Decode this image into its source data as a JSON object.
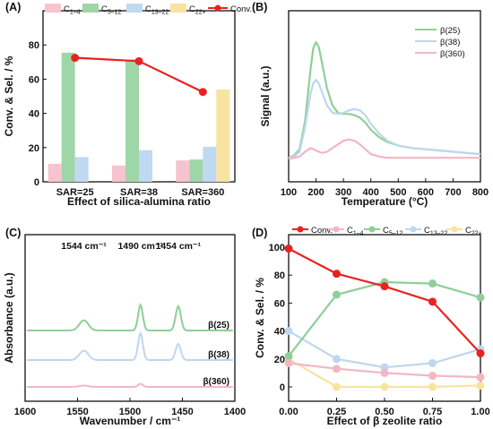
{
  "chart_data": [
    {
      "panel": "(A)",
      "type": "bar",
      "categories": [
        "SAR=25",
        "SAR=38",
        "SAR=360"
      ],
      "series": [
        {
          "name": "C1–4",
          "sub": "1–4",
          "color": "#f7c3cf",
          "values": [
            10.5,
            9.5,
            12.5
          ]
        },
        {
          "name": "C5–12",
          "sub": "5–12",
          "color": "#9fd6a7",
          "values": [
            75.5,
            71.5,
            13
          ]
        },
        {
          "name": "C13–22",
          "sub": "13–22",
          "color": "#bfd9f2",
          "values": [
            14.5,
            18.5,
            20.5
          ]
        },
        {
          "name": "C22+",
          "sub": "22+",
          "color": "#f8e3a0",
          "values": [
            0,
            0,
            54
          ]
        }
      ],
      "line": {
        "name": "Conv.",
        "color": "#e8231f",
        "values": [
          72.5,
          70.5,
          52.5
        ]
      },
      "xlabel": "Effect of  silica-alumina ratio",
      "ylabel": "Conv. & Sel. / %",
      "ylim": [
        0,
        100
      ],
      "yticks": [
        0,
        20,
        40,
        60,
        80
      ]
    },
    {
      "panel": "(B)",
      "type": "line",
      "xlabel": "Temperature (°C)",
      "ylabel": "Signal (a.u.)",
      "xlim": [
        100,
        800
      ],
      "xticks": [
        100,
        200,
        300,
        400,
        500,
        600,
        700,
        800
      ],
      "series": [
        {
          "name": "β(25)",
          "color": "#8fcf98",
          "x": [
            100,
            120,
            140,
            160,
            180,
            190,
            200,
            210,
            220,
            240,
            260,
            280,
            300,
            320,
            340,
            360,
            380,
            400,
            430,
            460,
            500,
            550,
            600,
            650,
            700,
            750,
            800
          ],
          "y": [
            0.05,
            0.07,
            0.12,
            0.35,
            0.78,
            0.95,
            1.0,
            0.96,
            0.85,
            0.62,
            0.48,
            0.42,
            0.41,
            0.41,
            0.4,
            0.38,
            0.34,
            0.28,
            0.22,
            0.18,
            0.15,
            0.13,
            0.12,
            0.11,
            0.1,
            0.09,
            0.08
          ]
        },
        {
          "name": "β(38)",
          "color": "#bcd7f0",
          "x": [
            100,
            120,
            140,
            160,
            180,
            190,
            200,
            210,
            220,
            240,
            260,
            280,
            300,
            320,
            340,
            360,
            380,
            400,
            430,
            460,
            500,
            550,
            600,
            650,
            700,
            750,
            800
          ],
          "y": [
            0.05,
            0.06,
            0.1,
            0.3,
            0.58,
            0.66,
            0.69,
            0.66,
            0.6,
            0.48,
            0.42,
            0.41,
            0.42,
            0.44,
            0.45,
            0.44,
            0.4,
            0.33,
            0.25,
            0.19,
            0.15,
            0.13,
            0.12,
            0.11,
            0.1,
            0.09,
            0.08
          ]
        },
        {
          "name": "β(360)",
          "color": "#f4b6c3",
          "x": [
            100,
            120,
            140,
            160,
            180,
            200,
            220,
            240,
            260,
            280,
            300,
            320,
            340,
            360,
            380,
            400,
            430,
            460,
            500,
            550,
            600,
            650,
            700,
            750,
            800
          ],
          "y": [
            0.04,
            0.05,
            0.06,
            0.1,
            0.13,
            0.11,
            0.09,
            0.1,
            0.13,
            0.16,
            0.19,
            0.2,
            0.19,
            0.16,
            0.12,
            0.08,
            0.06,
            0.05,
            0.05,
            0.05,
            0.05,
            0.05,
            0.05,
            0.05,
            0.05
          ]
        }
      ]
    },
    {
      "panel": "(C)",
      "type": "line",
      "xlabel": "Wavenumber / cm⁻¹",
      "ylabel": "Absorbance (a.u.)",
      "xlim": [
        1600,
        1400
      ],
      "xticks": [
        1600,
        1550,
        1500,
        1450,
        1400
      ],
      "annotations": [
        {
          "text": "1544 cm⁻¹",
          "x": 1544
        },
        {
          "text": "1490 cm⁻¹",
          "x": 1490
        },
        {
          "text": "1454 cm⁻¹",
          "x": 1454
        }
      ],
      "series": [
        {
          "name": "β(25)",
          "color": "#8fcf98",
          "offset": 2.3,
          "peaks": [
            [
              1544,
              0.38,
              6
            ],
            [
              1490,
              0.95,
              3.2
            ],
            [
              1454,
              0.9,
              3.5
            ]
          ]
        },
        {
          "name": "β(38)",
          "color": "#bcd7f0",
          "offset": 1.2,
          "peaks": [
            [
              1544,
              0.35,
              6
            ],
            [
              1490,
              1.0,
              3.2
            ],
            [
              1454,
              0.6,
              3.5
            ]
          ]
        },
        {
          "name": "β(360)",
          "color": "#f4b6c3",
          "offset": 0.2,
          "peaks": [
            [
              1544,
              0.05,
              6
            ],
            [
              1490,
              0.12,
              3.0
            ],
            [
              1454,
              0.0,
              3.5
            ]
          ]
        }
      ]
    },
    {
      "panel": "(D)",
      "type": "line",
      "xlabel": "Effect of  β zeolite ratio",
      "ylabel": "Conv. & Sel. / %",
      "xlim": [
        0,
        1
      ],
      "ylim": [
        0,
        100
      ],
      "xticks": [
        "0.00",
        "0.25",
        "0.50",
        "0.75",
        "1.00"
      ],
      "yticks": [
        0,
        20,
        40,
        60,
        80,
        100
      ],
      "x": [
        0,
        0.25,
        0.5,
        0.75,
        1.0
      ],
      "series": [
        {
          "name": "Conv.",
          "sub": "",
          "color": "#e8231f",
          "values": [
            99,
            81,
            72,
            61,
            24
          ]
        },
        {
          "name": "C1–4",
          "sub": "1–4",
          "color": "#f4b6c3",
          "values": [
            17,
            13,
            10,
            8,
            7
          ]
        },
        {
          "name": "C5–12",
          "sub": "5–12",
          "color": "#8fcf98",
          "values": [
            22,
            66,
            75,
            74,
            64
          ]
        },
        {
          "name": "C13–22",
          "sub": "13–22",
          "color": "#bcd7f0",
          "values": [
            40,
            20,
            14,
            17,
            27
          ]
        },
        {
          "name": "C22+",
          "sub": "22+",
          "color": "#f8e3a0",
          "values": [
            20,
            0,
            0,
            0,
            1
          ]
        }
      ]
    }
  ]
}
